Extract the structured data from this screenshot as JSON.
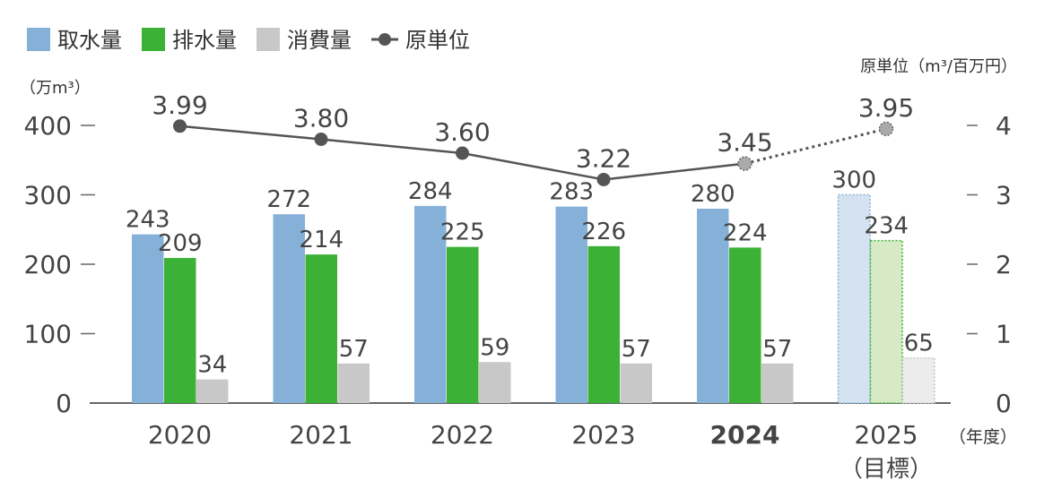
{
  "chart_data": {
    "type": "bar",
    "categories": [
      "2020",
      "2021",
      "2022",
      "2023",
      "2024",
      "2025"
    ],
    "category_sublabels": [
      "",
      "",
      "",
      "",
      "",
      "（目標）"
    ],
    "bold_category": "2024",
    "target_category": "2025",
    "series": [
      {
        "name": "取水量",
        "values": [
          243,
          272,
          284,
          283,
          280,
          300
        ],
        "color": "#85b1d9",
        "target_color": "#d4e2f1"
      },
      {
        "name": "排水量",
        "values": [
          209,
          214,
          225,
          226,
          224,
          234
        ],
        "color": "#3bb135",
        "target_color": "#d6ebc5"
      },
      {
        "name": "消費量",
        "values": [
          34,
          57,
          59,
          57,
          57,
          65
        ],
        "color": "#c8c8c8",
        "target_color": "#ececec"
      }
    ],
    "line_series": {
      "name": "原単位",
      "values": [
        3.99,
        3.8,
        3.6,
        3.22,
        3.45,
        3.95
      ],
      "labels": [
        "3.99",
        "3.80",
        "3.60",
        "3.22",
        "3.45",
        "3.95"
      ],
      "color": "#555555",
      "target_marker_color": "#aaaaaa"
    },
    "y_left": {
      "label": "（万m³）",
      "ticks": [
        0,
        100,
        200,
        300,
        400
      ],
      "range": [
        0,
        400
      ]
    },
    "y_right": {
      "label": "原単位（m³/百万円）",
      "ticks": [
        0,
        1,
        2,
        3,
        4
      ],
      "range": [
        0,
        4
      ]
    },
    "x_unit": "（年度）",
    "legend_position": "top-left"
  },
  "legend": [
    {
      "name": "取水量",
      "kind": "bar",
      "color": "#85b1d9"
    },
    {
      "name": "排水量",
      "kind": "bar",
      "color": "#3bb135"
    },
    {
      "name": "消費量",
      "kind": "bar",
      "color": "#c8c8c8"
    },
    {
      "name": "原単位",
      "kind": "line",
      "color": "#555555"
    }
  ]
}
